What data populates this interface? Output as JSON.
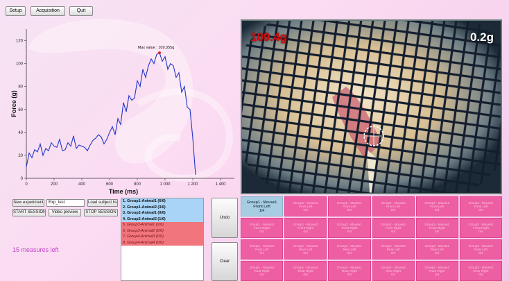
{
  "toolbar": {
    "setup_label": "Setup",
    "acquisition_label": "Acquisition",
    "quit_label": "Quit"
  },
  "chart_data": {
    "type": "line",
    "title": "",
    "xlabel": "Time (ms)",
    "ylabel": "Force (g)",
    "xlim": [
      0,
      1500
    ],
    "ylim": [
      0,
      130
    ],
    "xticks": [
      0,
      200,
      400,
      600,
      800,
      1000,
      1200,
      1400
    ],
    "xtick_labels": [
      "0",
      "200",
      "400",
      "600",
      "800",
      "1 000",
      "1 200",
      "1 400"
    ],
    "yticks": [
      0,
      20,
      40,
      60,
      80,
      100,
      120
    ],
    "ytick_labels": [
      "0",
      "20",
      "40",
      "60",
      "80",
      "100",
      "120"
    ],
    "annotation": "Max value : 109.355g",
    "max_point": {
      "x": 960,
      "y": 109.4
    },
    "color": "#1f35c8",
    "x": [
      0,
      20,
      40,
      60,
      80,
      100,
      120,
      140,
      160,
      180,
      200,
      220,
      240,
      260,
      280,
      300,
      320,
      340,
      360,
      380,
      400,
      420,
      440,
      460,
      480,
      500,
      520,
      540,
      560,
      580,
      600,
      620,
      640,
      660,
      680,
      700,
      720,
      740,
      760,
      780,
      800,
      820,
      840,
      860,
      880,
      900,
      920,
      940,
      960,
      980,
      1000,
      1020,
      1040,
      1060,
      1080,
      1100,
      1120,
      1140,
      1160,
      1180,
      1200,
      1220
    ],
    "y": [
      10,
      22,
      18,
      25,
      23,
      30,
      20,
      26,
      24,
      31,
      28,
      27,
      34,
      24,
      25,
      31,
      28,
      37,
      26,
      29,
      28,
      27,
      24,
      29,
      33,
      35,
      38,
      36,
      30,
      34,
      40,
      45,
      38,
      52,
      47,
      66,
      58,
      72,
      68,
      70,
      85,
      80,
      95,
      88,
      98,
      104,
      100,
      108,
      109.4,
      102,
      106,
      95,
      100,
      98,
      88,
      92,
      75,
      80,
      62,
      60,
      35,
      3
    ]
  },
  "session": {
    "new_experiment_label": "New experiment",
    "experiment_name_value": "Exp_test",
    "load_subject_list_label": "Load subject list",
    "start_session_label": "START SESSION",
    "video_preview_label": "Video preview",
    "stop_session_label": "STOP SESSION",
    "measures_left": "15 measures left"
  },
  "subjects": [
    {
      "label": "1. Group1-Animal1 (6/6)",
      "status": "blue"
    },
    {
      "label": "2. Group1-Animal2 (3/6)",
      "status": "blue"
    },
    {
      "label": "3. Group2-Animal1 (0/6)",
      "status": "blue"
    },
    {
      "label": "4. Group2-Animal2 (1/6)",
      "status": "blue"
    },
    {
      "label": "5. Group3-Animal1 (0/6)",
      "status": "red"
    },
    {
      "label": "6. Group3-Animal2 (0/6)",
      "status": "red"
    },
    {
      "label": "7. Group4-Animal3 (0/6)",
      "status": "red"
    },
    {
      "label": "8. Group4-Animal4 (0/6)",
      "status": "red"
    }
  ],
  "actions": {
    "undo_label": "Undo",
    "clear_label": "Clear"
  },
  "video": {
    "overlay_left": "109.4g",
    "overlay_right": "0.2g"
  },
  "measure_grid": [
    [
      {
        "l1": "Group1 - Mouse1",
        "l2": "Front Left",
        "l3": "1/4",
        "active": true
      },
      {
        "l1": "Group1 - Mouse1",
        "l2": "Front Left",
        "l3": "0/4"
      },
      {
        "l1": "Group2 - Mouse1",
        "l2": "Front Left",
        "l3": "0/4"
      },
      {
        "l1": "Group2 - Mouse2",
        "l2": "Front Left",
        "l3": "0/4"
      },
      {
        "l1": "Group3 - Mouse1",
        "l2": "Front Left",
        "l3": "0/4"
      },
      {
        "l1": "Group3 - Mouse2",
        "l2": "Front Left",
        "l3": "0/4"
      }
    ],
    [
      {
        "l1": "Group1 - Mouse1",
        "l2": "Front Right",
        "l3": "0/4"
      },
      {
        "l1": "Group1 - Mouse2",
        "l2": "Front Right",
        "l3": "0/4"
      },
      {
        "l1": "Group2 - Mouse1",
        "l2": "Front Right",
        "l3": "0/4"
      },
      {
        "l1": "Group2 - Mouse2",
        "l2": "Front Right",
        "l3": "0/4"
      },
      {
        "l1": "Group3 - Mouse1",
        "l2": "Front Right",
        "l3": "0/4"
      },
      {
        "l1": "Group3 - Mouse2",
        "l2": "Front Right",
        "l3": "0/4"
      }
    ],
    [
      {
        "l1": "Group1 - Mouse1",
        "l2": "Rear Left",
        "l3": "0/4"
      },
      {
        "l1": "Group1 - Mouse2",
        "l2": "Rear Left",
        "l3": "0/4"
      },
      {
        "l1": "Group2 - Mouse1",
        "l2": "Rear Left",
        "l3": "0/4"
      },
      {
        "l1": "Group2 - Mouse2",
        "l2": "Rear Left",
        "l3": "0/4"
      },
      {
        "l1": "Group3 - Mouse1",
        "l2": "Rear Left",
        "l3": "0/4"
      },
      {
        "l1": "Group3 - Mouse2",
        "l2": "Rear Left",
        "l3": "0/4"
      }
    ],
    [
      {
        "l1": "Group1 - Mouse1",
        "l2": "Rear Right",
        "l3": "0/4"
      },
      {
        "l1": "Group1 - Mouse2",
        "l2": "Rear Right",
        "l3": "0/4"
      },
      {
        "l1": "Group2 - Mouse1",
        "l2": "Rear Right",
        "l3": "0/4"
      },
      {
        "l1": "Group2 - Mouse2",
        "l2": "Rear Right",
        "l3": "0/4"
      },
      {
        "l1": "Group3 - Mouse1",
        "l2": "Rear Right",
        "l3": "0/4"
      },
      {
        "l1": "Group3 - Mouse2",
        "l2": "Rear Right",
        "l3": "0/4"
      }
    ]
  ]
}
